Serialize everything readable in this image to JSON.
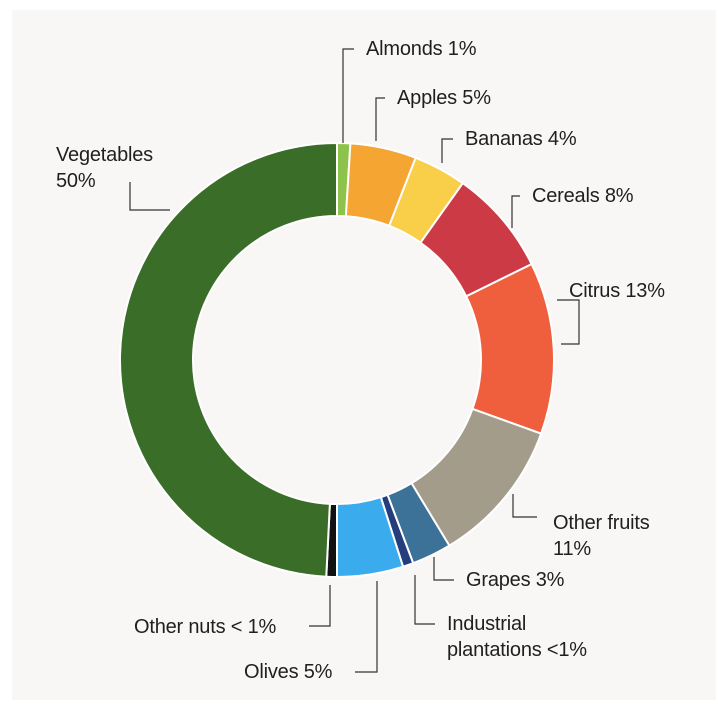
{
  "chart_data": {
    "type": "pie",
    "variant": "donut",
    "slices": [
      {
        "label": "Almonds 1%",
        "value": 1,
        "color": "#8dc34a"
      },
      {
        "label": "Apples 5%",
        "value": 5,
        "color": "#f5a532"
      },
      {
        "label": "Bananas 4%",
        "value": 4,
        "color": "#f9cf4a"
      },
      {
        "label": "Cereals 8%",
        "value": 8,
        "color": "#cc3a45"
      },
      {
        "label": "Citrus 13%",
        "value": 13,
        "color": "#ef5f3e"
      },
      {
        "label": "Other fruits 11%",
        "value": 11,
        "color": "#a39c8b"
      },
      {
        "label": "Grapes 3%",
        "value": 3,
        "color": "#3c7298"
      },
      {
        "label": "Industrial plantations <1%",
        "value": 0.8,
        "color": "#233d7d"
      },
      {
        "label": "Olives 5%",
        "value": 5,
        "color": "#3aabed"
      },
      {
        "label": "Other nuts < 1%",
        "value": 0.8,
        "color": "#111111"
      },
      {
        "label": "Vegetables 50%",
        "value": 50,
        "color": "#3a6d27"
      }
    ],
    "labels": {
      "almonds": "Almonds 1%",
      "apples": "Apples 5%",
      "bananas": "Bananas 4%",
      "cereals": "Cereals 8%",
      "citrus": "Citrus 13%",
      "other_fruits_line1": "Other fruits",
      "other_fruits_line2": "11%",
      "grapes": "Grapes 3%",
      "industrial_line1": "Industrial",
      "industrial_line2": "plantations <1%",
      "olives": "Olives 5%",
      "other_nuts": "Other nuts < 1%",
      "vegetables_line1": "Vegetables",
      "vegetables_line2": "50%"
    }
  }
}
